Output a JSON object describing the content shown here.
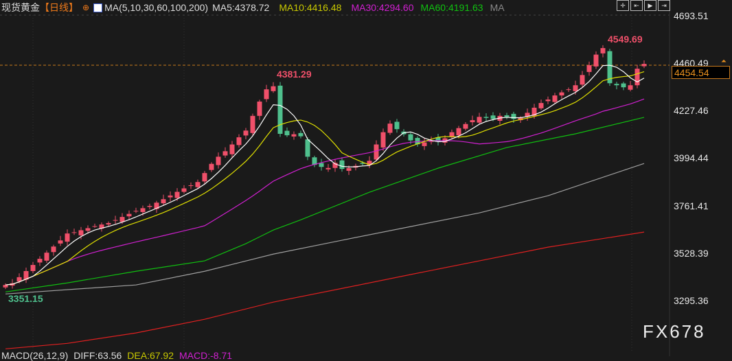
{
  "header": {
    "title": "现货黄金",
    "period": "【日线】",
    "indicator": "MA(5,10,30,60,100,200)",
    "ma5": "MA5:4378.72",
    "ma10": "MA10:4416.48",
    "ma30": "MA30:4294.60",
    "ma60": "MA60:4191.63",
    "ma_more": "MA"
  },
  "toolbar": {
    "icons": [
      "crosshair-icon",
      "step-back-icon",
      "play-icon",
      "exit-icon"
    ]
  },
  "y_axis": {
    "ticks": [
      "4693.51",
      "4460.49",
      "4227.46",
      "3994.44",
      "3761.41",
      "3528.39",
      "3295.36"
    ],
    "range": [
      3295.36,
      4693.51
    ]
  },
  "current_price": "4454.54",
  "reference_price": "4460.49",
  "annotations": {
    "high1": "4381.29",
    "high2": "4549.69",
    "low": "3351.15"
  },
  "macd": {
    "label": "MACD(26,12,9)",
    "diff": "DIFF:63.56",
    "dea": "DEA:67.92",
    "macd": "MACD:-8.71"
  },
  "watermark": "FX678",
  "colors": {
    "up": "#f0506a",
    "down": "#4fc08d",
    "ma5": "#ffffff",
    "ma10": "#e0e000",
    "ma30": "#d020d0",
    "ma60": "#10c010",
    "ma100": "#a0a0a0",
    "ma200": "#e02020"
  },
  "chart_data": {
    "type": "candlestick",
    "closes": [
      3372,
      3380,
      3410,
      3440,
      3470,
      3500,
      3530,
      3560,
      3590,
      3624,
      3630,
      3640,
      3650,
      3660,
      3668,
      3675,
      3690,
      3705,
      3720,
      3735,
      3748,
      3759,
      3775,
      3792,
      3810,
      3828,
      3845,
      3860,
      3876,
      3920,
      3965,
      4000,
      4027,
      4060,
      4095,
      4128,
      4200,
      4270,
      4330,
      4345,
      4112,
      4105,
      4110,
      4100,
      4000,
      3960,
      3950,
      3945,
      3970,
      3940,
      3944,
      3955,
      3965,
      3980,
      4060,
      4120,
      4162,
      4135,
      4110,
      4080,
      4061,
      4070,
      4080,
      4075,
      4090,
      4120,
      4140,
      4160,
      4179,
      4195,
      4190,
      4185,
      4200,
      4195,
      4185,
      4190,
      4215,
      4240,
      4263,
      4280,
      4300,
      4315,
      4330,
      4350,
      4400,
      4448,
      4500,
      4532,
      4360,
      4350,
      4340,
      4350,
      4431,
      4454.54
    ],
    "ma60": [
      [
        0,
        3338
      ],
      [
        9,
        3382
      ],
      [
        19,
        3439
      ],
      [
        29,
        3490
      ],
      [
        35,
        3574
      ],
      [
        39,
        3641
      ],
      [
        43,
        3691
      ],
      [
        53,
        3826
      ],
      [
        63,
        3944
      ],
      [
        73,
        4045
      ],
      [
        83,
        4112
      ],
      [
        93,
        4193
      ]
    ],
    "ma100": [
      [
        0,
        3328
      ],
      [
        19,
        3372
      ],
      [
        29,
        3439
      ],
      [
        39,
        3523
      ],
      [
        49,
        3591
      ],
      [
        59,
        3658
      ],
      [
        69,
        3725
      ],
      [
        79,
        3809
      ],
      [
        93,
        3967
      ]
    ],
    "ma200": [
      [
        0,
        3059
      ],
      [
        9,
        3086
      ],
      [
        19,
        3137
      ],
      [
        29,
        3204
      ],
      [
        39,
        3288
      ],
      [
        49,
        3355
      ],
      [
        59,
        3423
      ],
      [
        69,
        3490
      ],
      [
        79,
        3557
      ],
      [
        93,
        3631
      ]
    ]
  }
}
